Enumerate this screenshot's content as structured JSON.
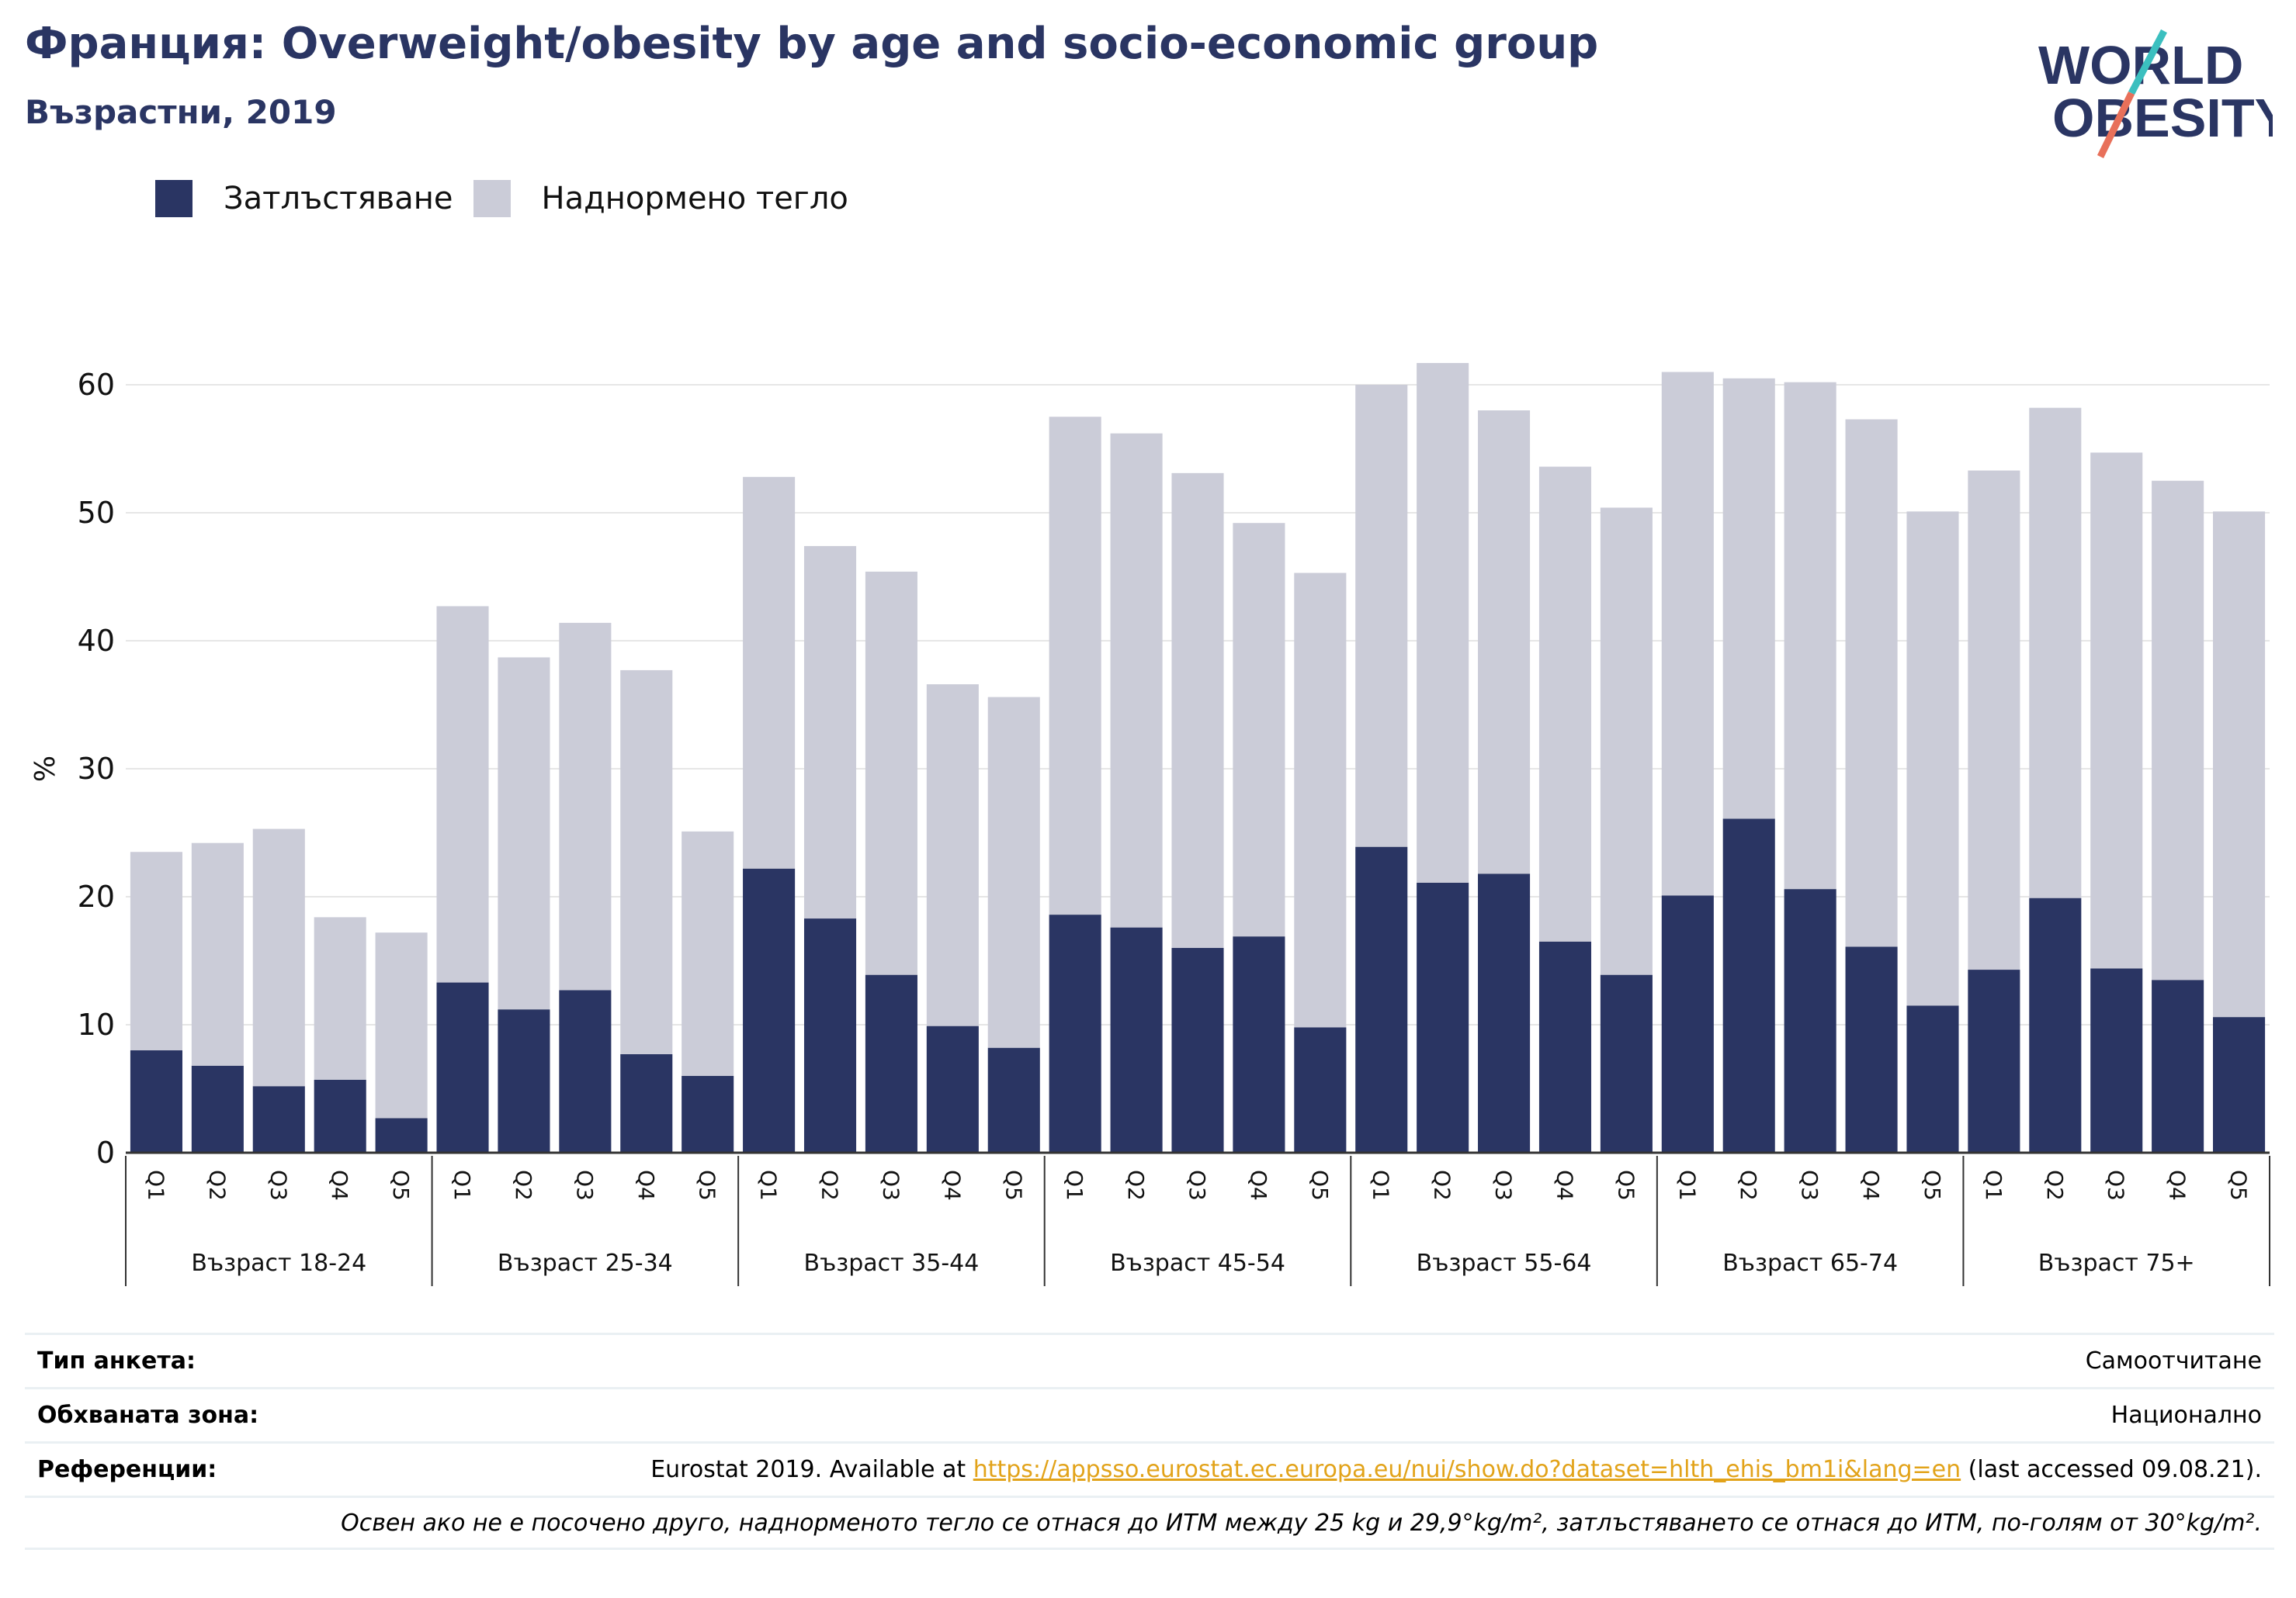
{
  "header": {
    "title": "Франция: Overweight/obesity by age and socio-economic group",
    "subtitle": "Възрастни, 2019"
  },
  "logo": {
    "line1": "WORLD",
    "line2": "OBESITY"
  },
  "colors": {
    "obesity": "#2a3563",
    "overweight": "#cbccd8",
    "title": "#2a3563",
    "link": "#e2a31a"
  },
  "chart_data": {
    "type": "bar",
    "stacked": true,
    "ylabel": "%",
    "ylim": [
      0,
      65
    ],
    "yticks": [
      0,
      10,
      20,
      30,
      40,
      50,
      60
    ],
    "grid": true,
    "legend_position": "top-left",
    "groups": [
      "Възраст 18-24",
      "Възраст 25-34",
      "Възраст 35-44",
      "Възраст 45-54",
      "Възраст 55-64",
      "Възраст 65-74",
      "Възраст 75+"
    ],
    "quintiles": [
      "Q1",
      "Q2",
      "Q3",
      "Q4",
      "Q5"
    ],
    "series": [
      {
        "name": "Затлъстяване",
        "values": [
          8.0,
          6.8,
          5.2,
          5.7,
          2.7,
          13.3,
          11.2,
          12.7,
          7.7,
          6.0,
          22.2,
          18.3,
          13.9,
          9.9,
          8.2,
          18.6,
          17.6,
          16.0,
          16.9,
          9.8,
          23.9,
          21.1,
          21.8,
          16.5,
          13.9,
          20.1,
          26.1,
          20.6,
          16.1,
          11.5,
          14.3,
          19.9,
          14.4,
          13.5,
          10.6
        ]
      },
      {
        "name": "Наднормено тегло",
        "values": [
          15.5,
          17.4,
          20.1,
          12.7,
          14.5,
          29.4,
          27.5,
          28.7,
          30.0,
          19.1,
          30.6,
          29.1,
          31.5,
          26.7,
          27.4,
          38.9,
          38.6,
          37.1,
          32.3,
          35.5,
          36.1,
          40.6,
          36.2,
          37.1,
          36.5,
          40.9,
          34.4,
          39.6,
          41.2,
          38.6,
          39.0,
          38.3,
          40.3,
          39.0,
          39.5
        ]
      }
    ]
  },
  "footer": {
    "survey_label": "Тип анкета:",
    "survey_value": "Самоотчитане",
    "area_label": "Обхваната зона:",
    "area_value": "Национално",
    "ref_label": "Референции:",
    "ref_prefix": "Eurostat 2019. Available at ",
    "ref_url": "https://appsso.eurostat.ec.europa.eu/nui/show.do?dataset=hlth_ehis_bm1i&lang=en",
    "ref_suffix": " (last accessed 09.08.21).",
    "note": "Освен ако не е посочено друго, наднорменото тегло се отнася до ИТМ между 25 kg и 29,9°kg/m², затлъстяването се отнася до ИТМ, по-голям от 30°kg/m²."
  }
}
